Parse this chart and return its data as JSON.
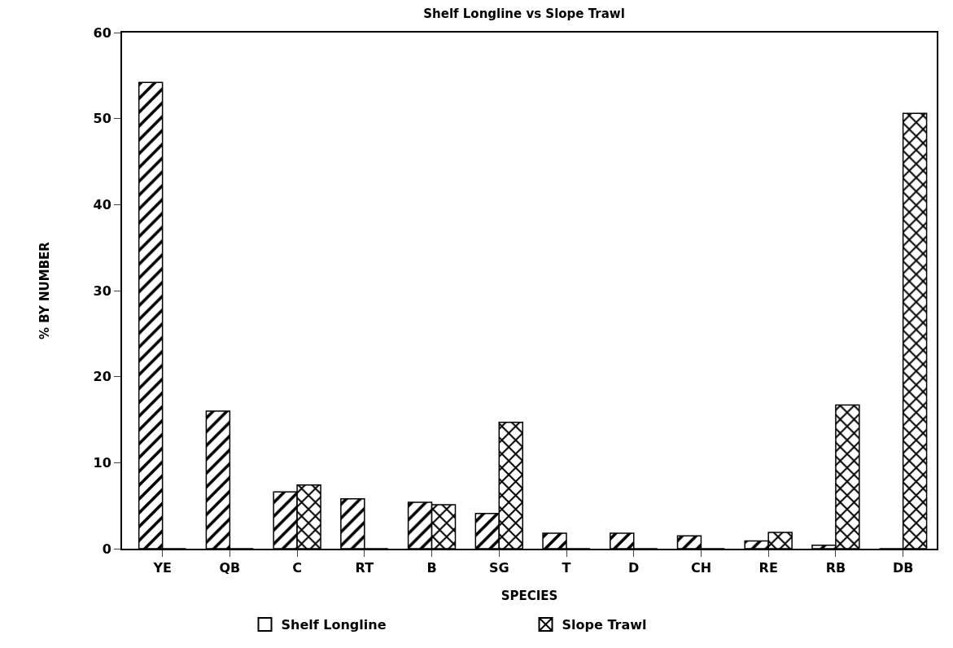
{
  "chart_data": {
    "type": "bar",
    "title": "Shelf Longline vs Slope Trawl",
    "xlabel": "SPECIES",
    "ylabel": "% BY NUMBER",
    "categories": [
      "YE",
      "QB",
      "C",
      "RT",
      "B",
      "SG",
      "T",
      "D",
      "CH",
      "RE",
      "RB",
      "DB"
    ],
    "series": [
      {
        "name": "Shelf Longline",
        "color": "#000000",
        "values": [
          54.2,
          16.0,
          6.6,
          5.8,
          5.4,
          4.1,
          1.8,
          1.8,
          1.5,
          0.9,
          0.4,
          0
        ]
      },
      {
        "name": "Slope Trawl",
        "color": "#000000",
        "values": [
          0,
          0,
          7.4,
          0,
          5.1,
          14.7,
          0,
          0,
          0,
          1.9,
          16.7,
          50.6
        ]
      }
    ],
    "ylim": [
      0,
      60
    ],
    "yticks": [
      0,
      10,
      20,
      30,
      40,
      50,
      60
    ],
    "legend": "bottom"
  }
}
